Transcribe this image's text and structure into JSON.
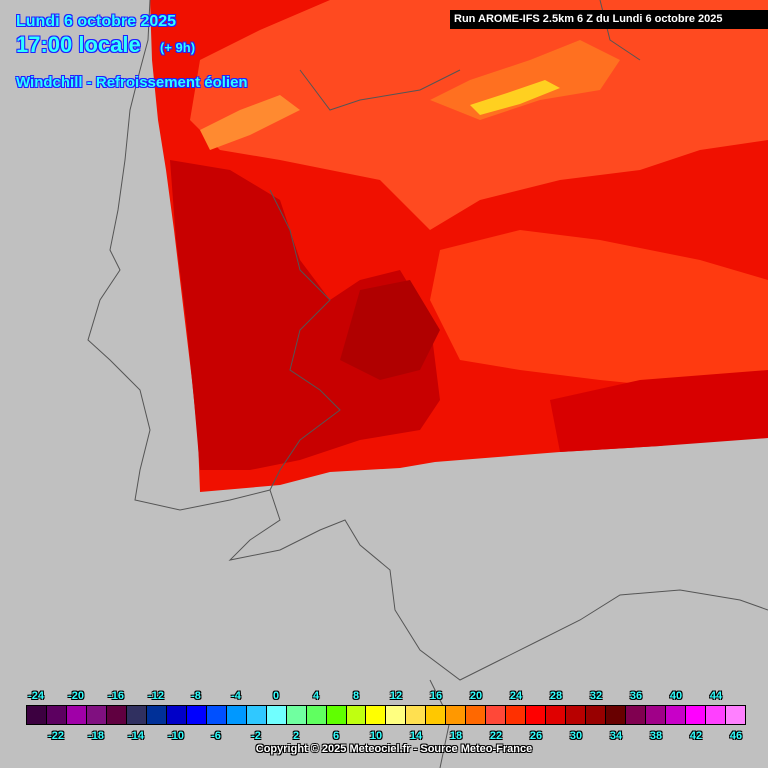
{
  "header": {
    "date": "Lundi 6 octobre 2025",
    "time": "17:00 locale",
    "offset": "(+ 9h)",
    "parameter": "Windchill - Refroissement éolien",
    "run": "Run AROME-IFS 2.5km 6 Z du Lundi 6 octobre 2025"
  },
  "legend": {
    "values": [
      -24,
      -22,
      -20,
      -18,
      -16,
      -14,
      -12,
      -10,
      -8,
      -6,
      -4,
      -2,
      0,
      2,
      4,
      6,
      8,
      10,
      12,
      14,
      16,
      18,
      20,
      22,
      24,
      26,
      28,
      30,
      32,
      34,
      36,
      38,
      40,
      42,
      44,
      46
    ],
    "colors": [
      "#3c0040",
      "#5c0060",
      "#a000a8",
      "#801080",
      "#600040",
      "#303060",
      "#003098",
      "#0000c8",
      "#0000ff",
      "#0050ff",
      "#0098ff",
      "#30c8ff",
      "#70ffff",
      "#70ffa0",
      "#60ff60",
      "#60ff00",
      "#c0ff10",
      "#ffff00",
      "#ffff80",
      "#ffe050",
      "#ffc800",
      "#ff9800",
      "#ff6800",
      "#ff4838",
      "#ff3000",
      "#ff0000",
      "#e00000",
      "#b80000",
      "#980000",
      "#680000",
      "#800050",
      "#a00088",
      "#c800c8",
      "#ff00ff",
      "#ff40ff",
      "#ff80ff"
    ]
  },
  "copyright": "Copyright © 2025 Meteociel.fr - Source Meteo-France"
}
